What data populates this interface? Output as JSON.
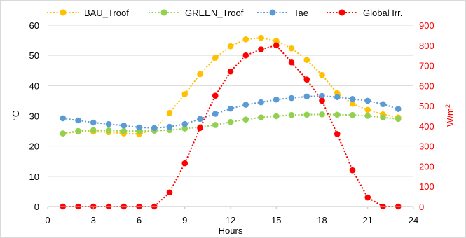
{
  "chart_data": {
    "type": "line",
    "x": [
      1,
      2,
      3,
      4,
      5,
      6,
      7,
      8,
      9,
      10,
      11,
      12,
      13,
      14,
      15,
      16,
      17,
      18,
      19,
      20,
      21,
      22,
      23
    ],
    "series": [
      {
        "name": "BAU_Troof",
        "axis": "left",
        "color": "#FFC000",
        "values": [
          24.2,
          24.8,
          24.8,
          24.6,
          24.2,
          24.0,
          25.5,
          31.0,
          37.2,
          43.8,
          49.2,
          53.0,
          55.3,
          55.8,
          54.8,
          52.3,
          48.5,
          43.5,
          37.5,
          34.0,
          32.0,
          30.5,
          29.5
        ]
      },
      {
        "name": "GREEN_Troof",
        "axis": "left",
        "color": "#92D050",
        "values": [
          24.2,
          25.0,
          25.3,
          25.2,
          25.0,
          25.0,
          25.1,
          25.3,
          25.8,
          26.3,
          27.0,
          28.0,
          28.8,
          29.5,
          29.9,
          30.3,
          30.4,
          30.5,
          30.4,
          30.3,
          30.0,
          29.5,
          29.0
        ]
      },
      {
        "name": "Tae",
        "axis": "left",
        "color": "#5B9BD5",
        "values": [
          29.2,
          28.5,
          27.8,
          27.3,
          26.8,
          26.2,
          26.0,
          26.4,
          27.3,
          29.0,
          30.7,
          32.4,
          33.7,
          34.5,
          35.4,
          35.9,
          36.4,
          36.6,
          36.2,
          35.6,
          35.0,
          33.9,
          32.3
        ]
      },
      {
        "name": "Global Irr.",
        "axis": "right",
        "color": "#FF0000",
        "values": [
          0,
          0,
          0,
          0,
          0,
          0,
          0,
          70,
          215,
          390,
          550,
          670,
          750,
          780,
          800,
          715,
          630,
          525,
          360,
          180,
          45,
          0,
          0
        ]
      }
    ],
    "xlabel": "Hours",
    "ylabel": "°C",
    "y2label": "W/m",
    "y2label_sup": "2",
    "xlim": [
      0,
      24
    ],
    "ylim": [
      0,
      60
    ],
    "y2lim": [
      0,
      900
    ],
    "xticks": [
      "0",
      "3",
      "6",
      "9",
      "12",
      "15",
      "18",
      "21",
      "24"
    ],
    "yticks": [
      "0",
      "10",
      "20",
      "30",
      "40",
      "50",
      "60"
    ],
    "y2ticks": [
      "0",
      "100",
      "200",
      "300",
      "400",
      "500",
      "600",
      "700",
      "800",
      "900"
    ],
    "grid": "horizontal",
    "legend": "top",
    "colors": {
      "axis_left": "#000000",
      "axis_right": "#FF0000",
      "grid": "#D9D9D9",
      "frame": "#BFBFBF"
    }
  }
}
